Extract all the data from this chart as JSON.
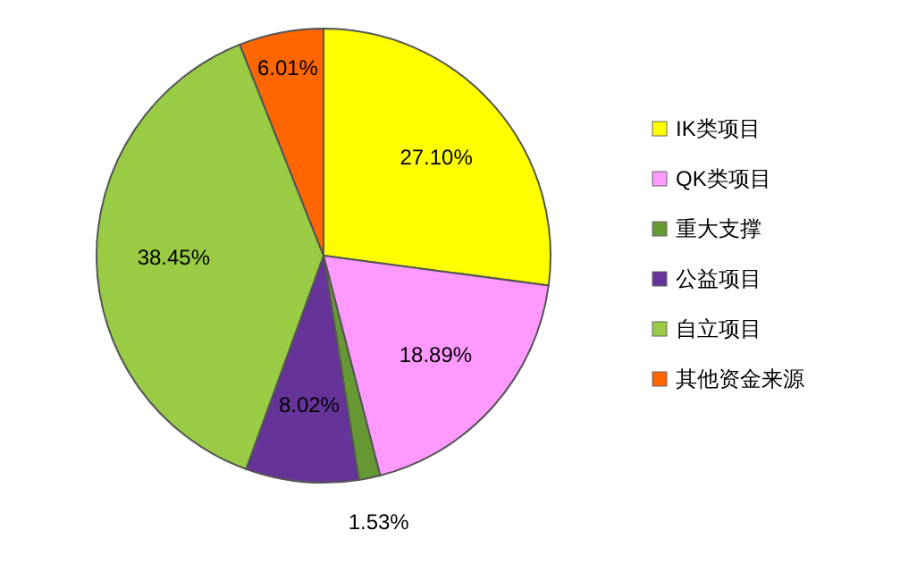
{
  "chart_data": {
    "type": "pie",
    "categories": [
      "IK类项目",
      "QK类项目",
      "重大支撑",
      "公益项目",
      "自立项目",
      "其他资金来源"
    ],
    "values": [
      27.1,
      18.89,
      1.53,
      8.02,
      38.45,
      6.01
    ],
    "colors": [
      "#ffff00",
      "#ff99ff",
      "#669933",
      "#663399",
      "#99cc44",
      "#ff6600"
    ],
    "value_labels": [
      "27.10%",
      "18.89%",
      "1.53%",
      "8.02%",
      "38.45%",
      "6.01%"
    ],
    "legend": "right"
  }
}
